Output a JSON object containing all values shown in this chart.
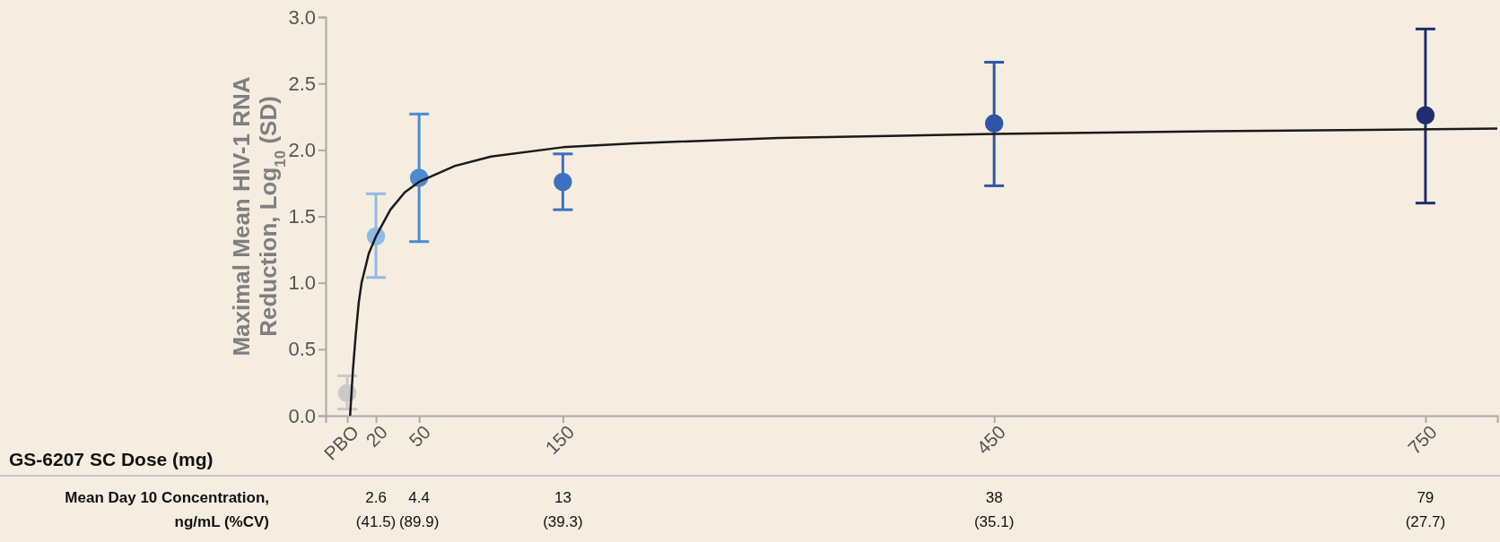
{
  "chart_data": {
    "type": "scatter",
    "xlabel": "GS-6207 SC Dose (mg)",
    "ylabel": "Maximal Mean HIV-1 RNA Reduction, Log$_{10}$ (SD)",
    "xlim": [
      -15,
      800
    ],
    "xticks": [
      {
        "value": 0,
        "label": "PBO"
      },
      20,
      50,
      150,
      450,
      750
    ],
    "ylim": [
      0,
      3
    ],
    "yticks": [
      {
        "value": 0,
        "label": "0.0"
      },
      0.5,
      {
        "value": 1,
        "label": "1.0"
      },
      1.5,
      {
        "value": 2,
        "label": "2.0"
      },
      2.5,
      {
        "value": 3,
        "label": "3.0"
      }
    ],
    "grid": false,
    "series": [
      {
        "marker": "circle",
        "x": [
          0,
          20,
          50,
          150,
          450,
          750
        ],
        "values": [
          0.17,
          1.35,
          1.79,
          1.76,
          2.2,
          2.26
        ],
        "colors": [
          "#c9c9c9",
          "#8dbbe8",
          "#4d8ad2",
          "#3f6fc2",
          "#2e55a8",
          "#1f2e6e"
        ],
        "errors": [
          [
            0.05,
            0.3
          ],
          [
            1.04,
            1.67
          ],
          [
            1.31,
            2.27
          ],
          [
            1.55,
            1.97
          ],
          [
            1.73,
            2.66
          ],
          [
            1.6,
            2.91
          ]
        ]
      },
      {
        "type": "line",
        "color": "#1a1a1a",
        "x": [
          2,
          4,
          6,
          8,
          10,
          15,
          20,
          30,
          40,
          50,
          75,
          100,
          150,
          200,
          300,
          450,
          600,
          800
        ],
        "values": [
          0,
          0.35,
          0.62,
          0.85,
          1.0,
          1.22,
          1.35,
          1.55,
          1.68,
          1.76,
          1.88,
          1.95,
          2.02,
          2.05,
          2.09,
          2.12,
          2.14,
          2.16
        ]
      }
    ],
    "annotations": [
      "Mean Day 10 Concentration,\nng/mL (%CV)",
      "2.6\n(41.5)",
      "4.4\n(89.9)",
      "13\n(39.3)",
      "38\n(35.1)",
      "79\n(27.7)"
    ]
  }
}
